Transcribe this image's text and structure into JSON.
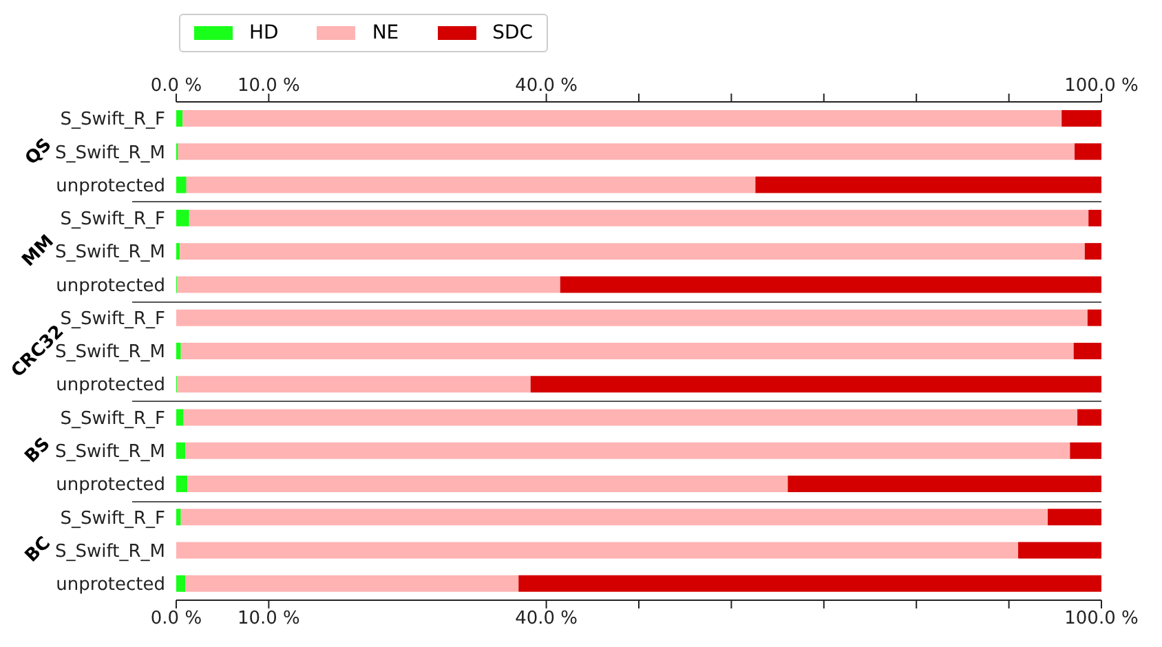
{
  "chart_data": {
    "type": "bar",
    "orientation": "horizontal",
    "stacked": true,
    "legend": "top left",
    "grid": false,
    "categories": [
      "S_Swift_R_F",
      "S_Swift_R_M",
      "unprotected",
      "S_Swift_R_F",
      "S_Swift_R_M",
      "unprotected",
      "S_Swift_R_F",
      "S_Swift_R_M",
      "unprotected",
      "S_Swift_R_F",
      "S_Swift_R_M",
      "unprotected",
      "S_Swift_R_F",
      "S_Swift_R_M",
      "unprotected"
    ],
    "series": [
      {
        "name": "HD",
        "color": "#19ff19",
        "values": [
          0.7,
          0.2,
          1.1,
          1.4,
          0.4,
          0.1,
          0,
          0.5,
          0.1,
          0.8,
          1.0,
          1.2,
          0.5,
          0,
          1.0
        ]
      },
      {
        "name": "NE",
        "color": "#ffb3b3",
        "values": [
          95.0,
          96.9,
          61.5,
          97.2,
          97.8,
          41.4,
          98.5,
          96.5,
          38.2,
          96.6,
          95.6,
          64.9,
          93.7,
          91.0,
          36.0
        ]
      },
      {
        "name": "SDC",
        "color": "#d40000",
        "values": [
          4.3,
          2.9,
          37.4,
          1.4,
          1.8,
          58.5,
          1.5,
          3.0,
          61.7,
          2.6,
          3.4,
          33.9,
          5.8,
          9.0,
          63.0
        ]
      }
    ],
    "xlim": [
      0,
      100
    ],
    "xticks": [
      {
        "value": 0,
        "label": "0.0 %"
      },
      {
        "value": 10,
        "label": "10.0 %"
      },
      {
        "value": 40,
        "label": "40.0 %"
      },
      {
        "value": 50,
        "label": null
      },
      {
        "value": 60,
        "label": null
      },
      {
        "value": 70,
        "label": null
      },
      {
        "value": 80,
        "label": null
      },
      {
        "value": 90,
        "label": null
      },
      {
        "value": 100,
        "label": "100.0 %"
      }
    ],
    "x2lim": [
      0,
      100
    ],
    "x2ticks": [
      {
        "value": 0,
        "label": "0.0 %"
      },
      {
        "value": 10,
        "label": "10.0 %"
      },
      {
        "value": 40,
        "label": "40.0 %"
      },
      {
        "value": 50,
        "label": null
      },
      {
        "value": 60,
        "label": null
      },
      {
        "value": 70,
        "label": null
      },
      {
        "value": 80,
        "label": null
      },
      {
        "value": 90,
        "label": null
      },
      {
        "value": 100,
        "label": "100.0 %"
      }
    ],
    "annotations": [
      "QS",
      "MM",
      "CRC32",
      "BS",
      "BC"
    ]
  }
}
